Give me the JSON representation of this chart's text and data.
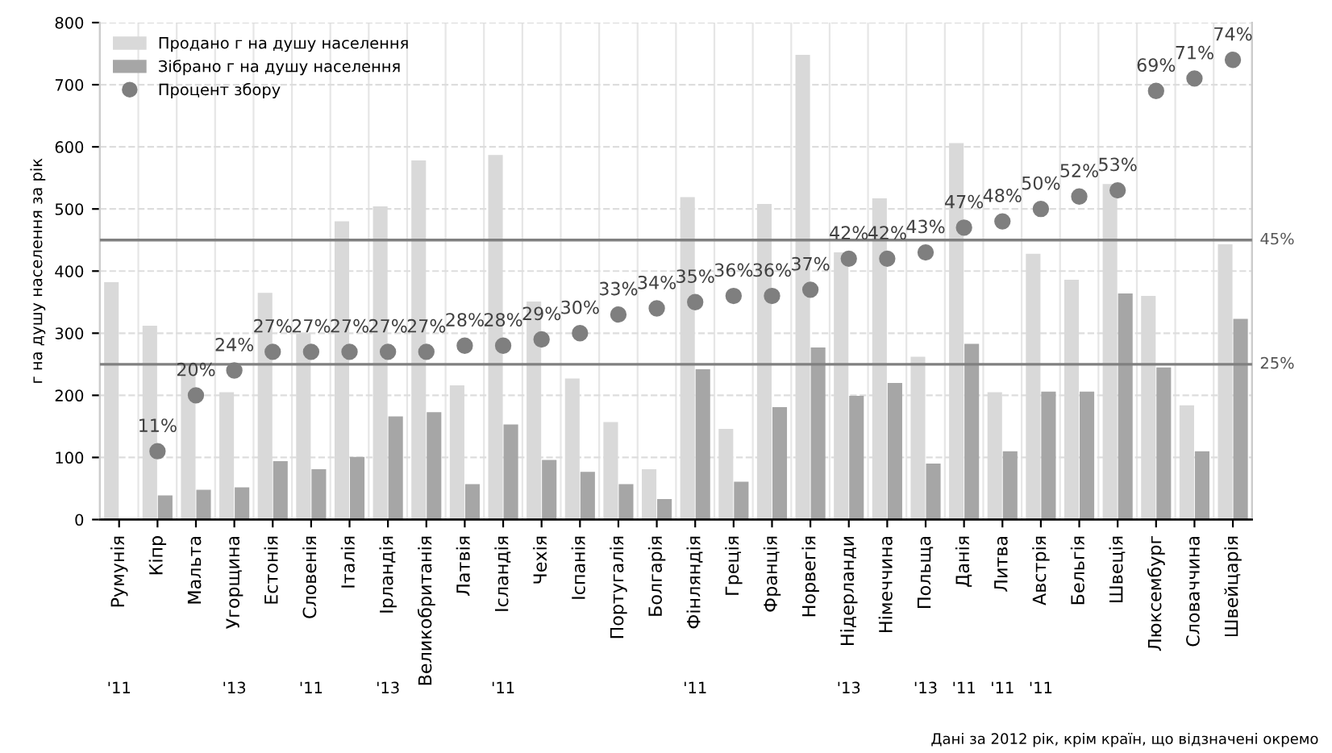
{
  "chart_data": {
    "type": "bar",
    "ylabel": "г на душу населення за рік",
    "categories": [
      "Румунія\n'11",
      "Кіпр",
      "Мальта",
      "Угорщина\n'13",
      "Естонія",
      "Словенія\n'11",
      "Італія",
      "Ірландія\n'13",
      "Великобританія",
      "Латвія",
      "Ісландія\n'11",
      "Чехія",
      "Іспанія",
      "Португалія",
      "Болгарія",
      "Фінляндія\n'11",
      "Греція",
      "Франція",
      "Норвегія",
      "Нідерланди\n'13",
      "Німеччина",
      "Польща\n'13",
      "Данія\n'11",
      "Литва\n'11",
      "Австрія\n'11",
      "Бельгія",
      "Швеція",
      "Люксембург",
      "Словаччина",
      "Швейцарія"
    ],
    "series": [
      {
        "name": "Продано г на душу населення",
        "color": "#d9d9d9",
        "values": [
          382,
          312,
          250,
          205,
          365,
          300,
          480,
          504,
          578,
          216,
          587,
          351,
          227,
          157,
          81,
          519,
          146,
          508,
          748,
          430,
          517,
          262,
          606,
          205,
          428,
          386,
          540,
          360,
          184,
          443
        ]
      },
      {
        "name": "Зібрано г на душу населення",
        "color": "#a6a6a6",
        "values": [
          null,
          39,
          48,
          52,
          94,
          81,
          101,
          166,
          173,
          57,
          153,
          96,
          77,
          57,
          33,
          242,
          61,
          181,
          277,
          199,
          220,
          90,
          283,
          110,
          206,
          206,
          364,
          245,
          110,
          323
        ]
      },
      {
        "name": "Процент збору",
        "type": "scatter",
        "axis": "y2",
        "color": "#7f7f7f",
        "marker": "circle",
        "values": [
          null,
          11,
          20,
          24,
          27,
          27,
          27,
          27,
          27,
          28,
          28,
          29,
          30,
          33,
          34,
          35,
          36,
          36,
          37,
          42,
          42,
          43,
          47,
          48,
          50,
          52,
          53,
          69,
          71,
          74
        ],
        "value_labels": [
          null,
          "11%",
          "20%",
          "24%",
          "27%",
          "27%",
          "27%",
          "27%",
          "27%",
          "28%",
          "28%",
          "29%",
          "30%",
          "33%",
          "34%",
          "35%",
          "36%",
          "36%",
          "37%",
          "42%",
          "42%",
          "43%",
          "47%",
          "48%",
          "50%",
          "52%",
          "53%",
          "69%",
          "71%",
          "74%"
        ]
      }
    ],
    "ylim": [
      0,
      800
    ],
    "yticks": [
      0,
      100,
      200,
      300,
      400,
      500,
      600,
      700,
      800
    ],
    "y2lim": [
      0,
      80
    ],
    "ref_lines": [
      {
        "axis": "y2",
        "value": 25,
        "label": "25%",
        "color": "#808080"
      },
      {
        "axis": "y2",
        "value": 45,
        "label": "45%",
        "color": "#808080"
      }
    ],
    "grid": true,
    "legend": "top left",
    "annotations": [
      "Дані за 2012 рік, крім країн, що відзначені окремо"
    ]
  }
}
